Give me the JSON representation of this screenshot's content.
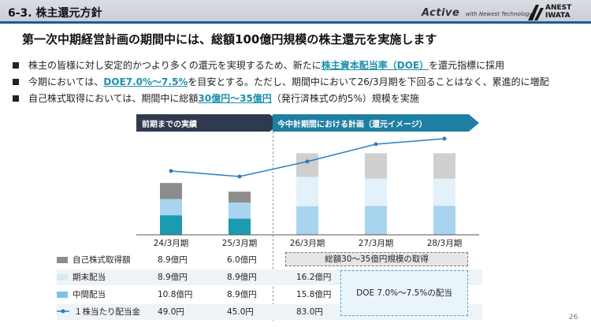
{
  "header": {
    "section_title": "6-3. 株主還元方針",
    "active_logo_main": "Active",
    "active_logo_sub": "with Newest Technology",
    "brand_line1": "ANEST",
    "brand_line2": "IWATA"
  },
  "headline": "第一次中期経営計画の期間中には、総額100億円規模の株主還元を実施します",
  "bullets": [
    {
      "pre": "株主の皆様に対し安定的かつより多くの還元を実現するため、新たに",
      "hl": "株主資本配当率（DOE）",
      "post": "を還元指標に採用"
    },
    {
      "pre": "今期においては、",
      "hl": "DOE7.0%～7.5%",
      "post": "を目安とする。ただし、期間中において26/3月期を下回ることはなく、累進的に増配"
    },
    {
      "pre": "自己株式取得においては、期間中に総額",
      "hl": "30億円～35億円",
      "post": "（発行済株式の約5%）規模を実施"
    }
  ],
  "chevrons": {
    "left": "前期までの実績",
    "right": "今中計期間における計画（還元イメージ）"
  },
  "colors": {
    "buyback": "#8c8c8c",
    "final_div": "#d6e9f6",
    "interim_div": "#7fc0e8",
    "interim_actual": "#1c9ab0",
    "line": "#2b7fc0",
    "buyback_light": "#cfcfcf",
    "final_light": "#e3f1fa",
    "interim_light": "#a8d4f0"
  },
  "chart_data": {
    "type": "bar",
    "stacked": true,
    "categories": [
      "24/3月期",
      "25/3月期",
      "26/3月期",
      "27/3月期",
      "28/3月期"
    ],
    "series": [
      {
        "name": "中間配当",
        "values": [
          10.8,
          8.9,
          15.8,
          null,
          null
        ]
      },
      {
        "name": "期末配当",
        "values": [
          8.9,
          8.9,
          16.2,
          null,
          null
        ]
      },
      {
        "name": "自己株式取得額",
        "values": [
          8.9,
          6.0,
          null,
          null,
          null
        ]
      },
      {
        "name": "１株当たり配当金",
        "type": "line",
        "values": [
          49.0,
          45.0,
          83.0,
          null,
          null
        ]
      }
    ]
  },
  "table": {
    "rows": [
      {
        "label": "自己株式取得額",
        "cells": [
          "8.9億円",
          "6.0億円"
        ]
      },
      {
        "label": "期末配当",
        "cells": [
          "8.9億円",
          "8.9億円",
          "16.2億円"
        ]
      },
      {
        "label": "中間配当",
        "cells": [
          "10.8億円",
          "8.9億円",
          "15.8億円"
        ]
      },
      {
        "label": "１株当たり配当金",
        "cells": [
          "49.0円",
          "45.0円",
          "83.0円"
        ]
      }
    ],
    "total_note": "総額30～35億円規模の取得",
    "doe_note": "DOE 7.0%～7.5%の配当"
  },
  "page_number": "26"
}
